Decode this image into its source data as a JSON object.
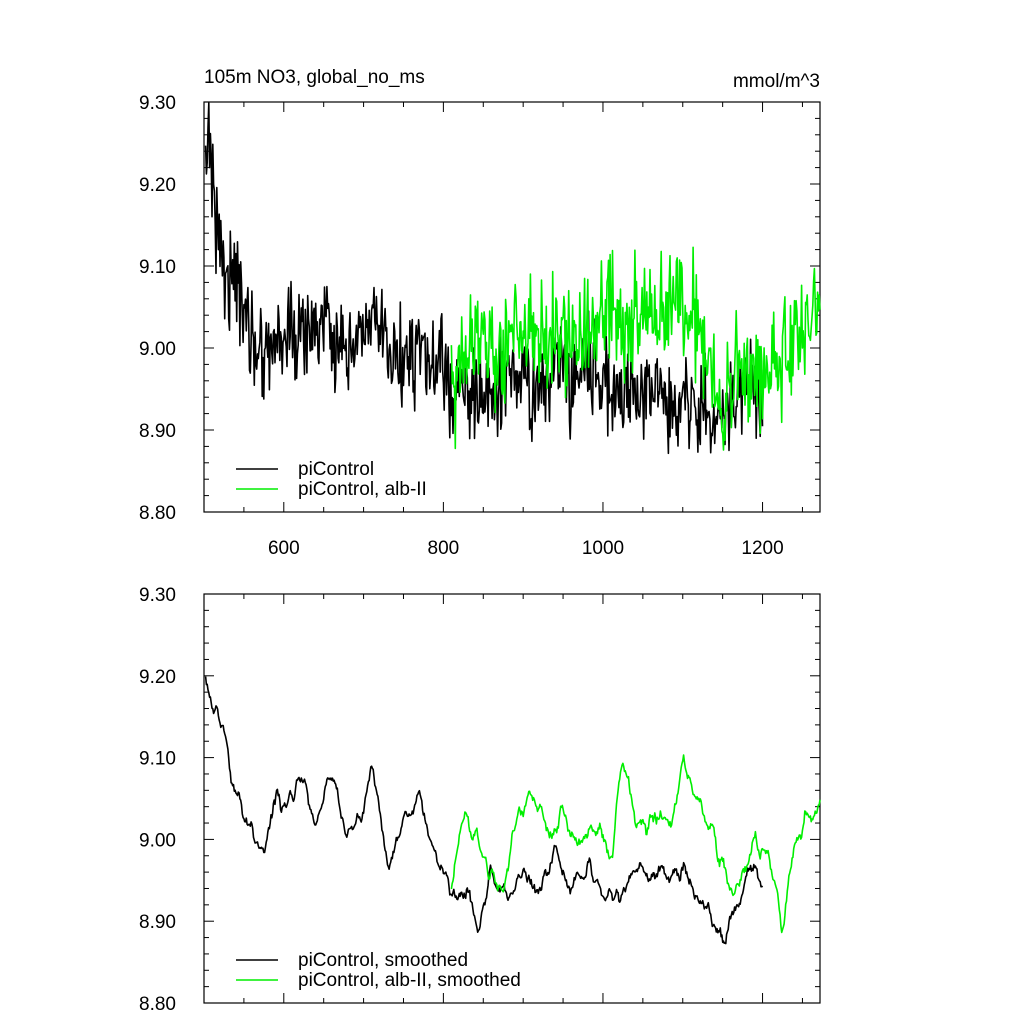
{
  "figure": {
    "title_left": "105m NO3, global_no_ms",
    "title_right": "mmol/m^3"
  },
  "chart_data": [
    {
      "type": "line",
      "panel": "top",
      "xlim": [
        500,
        1272
      ],
      "ylim": [
        8.8,
        9.3
      ],
      "x_ticks": [
        600,
        800,
        1000,
        1200
      ],
      "x_tick_labels": [
        "600",
        "800",
        "1000",
        "1200"
      ],
      "y_ticks": [
        8.8,
        8.9,
        9.0,
        9.1,
        9.2,
        9.3
      ],
      "y_tick_labels": [
        "8.80",
        "8.90",
        "9.00",
        "9.10",
        "9.20",
        "9.30"
      ],
      "legend_position": "bottom-left",
      "series": [
        {
          "name": "piControl",
          "color": "#000000",
          "x_range": [
            502,
            1200
          ],
          "noise_amp": 0.05,
          "anchors": [
            [
              502,
              9.2
            ],
            [
              506,
              9.29
            ],
            [
              512,
              9.18
            ],
            [
              525,
              9.1
            ],
            [
              545,
              9.07
            ],
            [
              560,
              9.01
            ],
            [
              580,
              9.0
            ],
            [
              600,
              9.02
            ],
            [
              620,
              9.01
            ],
            [
              640,
              9.03
            ],
            [
              660,
              9.02
            ],
            [
              680,
              8.97
            ],
            [
              700,
              9.03
            ],
            [
              720,
              9.02
            ],
            [
              740,
              8.98
            ],
            [
              760,
              9.0
            ],
            [
              780,
              8.98
            ],
            [
              800,
              8.97
            ],
            [
              820,
              8.94
            ],
            [
              840,
              8.95
            ],
            [
              860,
              8.93
            ],
            [
              880,
              8.97
            ],
            [
              900,
              8.96
            ],
            [
              920,
              8.94
            ],
            [
              940,
              8.98
            ],
            [
              960,
              8.96
            ],
            [
              980,
              8.99
            ],
            [
              1000,
              8.96
            ],
            [
              1020,
              8.94
            ],
            [
              1040,
              8.95
            ],
            [
              1060,
              8.95
            ],
            [
              1080,
              8.93
            ],
            [
              1100,
              8.95
            ],
            [
              1120,
              8.93
            ],
            [
              1140,
              8.91
            ],
            [
              1160,
              8.92
            ],
            [
              1180,
              8.96
            ],
            [
              1200,
              8.94
            ]
          ]
        },
        {
          "name": "piControl, alb-II",
          "color": "#00ee00",
          "x_range": [
            810,
            1272
          ],
          "noise_amp": 0.06,
          "anchors": [
            [
              810,
              8.95
            ],
            [
              830,
              9.0
            ],
            [
              850,
              9.02
            ],
            [
              870,
              8.98
            ],
            [
              890,
              9.03
            ],
            [
              910,
              9.04
            ],
            [
              930,
              9.01
            ],
            [
              950,
              9.02
            ],
            [
              970,
              9.0
            ],
            [
              990,
              9.03
            ],
            [
              1010,
              9.06
            ],
            [
              1030,
              9.02
            ],
            [
              1050,
              9.05
            ],
            [
              1070,
              9.04
            ],
            [
              1090,
              9.06
            ],
            [
              1110,
              9.05
            ],
            [
              1130,
              9.0
            ],
            [
              1150,
              8.92
            ],
            [
              1170,
              8.97
            ],
            [
              1190,
              8.97
            ],
            [
              1210,
              8.96
            ],
            [
              1230,
              9.0
            ],
            [
              1250,
              9.03
            ],
            [
              1272,
              9.04
            ]
          ]
        }
      ]
    },
    {
      "type": "line",
      "panel": "bottom",
      "xlim": [
        500,
        1272
      ],
      "ylim": [
        8.8,
        9.3
      ],
      "x_ticks": [
        600,
        800,
        1000,
        1200
      ],
      "y_ticks": [
        8.8,
        8.9,
        9.0,
        9.1,
        9.2,
        9.3
      ],
      "y_tick_labels": [
        "8.80",
        "8.90",
        "9.00",
        "9.10",
        "9.20",
        "9.30"
      ],
      "legend_position": "bottom-left",
      "series": [
        {
          "name": "piControl, smoothed",
          "color": "#000000",
          "x_range": [
            502,
            1200
          ],
          "noise_amp": 0.022,
          "anchors": [
            [
              502,
              9.205
            ],
            [
              510,
              9.16
            ],
            [
              525,
              9.13
            ],
            [
              540,
              9.05
            ],
            [
              560,
              9.01
            ],
            [
              575,
              8.98
            ],
            [
              590,
              9.06
            ],
            [
              600,
              9.04
            ],
            [
              620,
              9.08
            ],
            [
              640,
              9.02
            ],
            [
              660,
              9.09
            ],
            [
              680,
              9.0
            ],
            [
              700,
              9.04
            ],
            [
              710,
              9.1
            ],
            [
              730,
              8.97
            ],
            [
              750,
              9.02
            ],
            [
              770,
              9.05
            ],
            [
              790,
              8.98
            ],
            [
              810,
              8.93
            ],
            [
              830,
              8.94
            ],
            [
              845,
              8.88
            ],
            [
              860,
              8.96
            ],
            [
              880,
              8.93
            ],
            [
              900,
              8.96
            ],
            [
              920,
              8.93
            ],
            [
              940,
              8.99
            ],
            [
              960,
              8.93
            ],
            [
              980,
              8.97
            ],
            [
              1000,
              8.93
            ],
            [
              1020,
              8.93
            ],
            [
              1040,
              8.96
            ],
            [
              1060,
              8.96
            ],
            [
              1080,
              8.95
            ],
            [
              1100,
              8.96
            ],
            [
              1120,
              8.93
            ],
            [
              1140,
              8.9
            ],
            [
              1150,
              8.87
            ],
            [
              1170,
              8.92
            ],
            [
              1190,
              8.98
            ],
            [
              1200,
              8.93
            ]
          ]
        },
        {
          "name": "piControl, alb-II, smoothed",
          "color": "#00ee00",
          "x_range": [
            810,
            1272
          ],
          "noise_amp": 0.024,
          "anchors": [
            [
              810,
              8.92
            ],
            [
              825,
              9.04
            ],
            [
              845,
              8.99
            ],
            [
              860,
              8.96
            ],
            [
              875,
              8.94
            ],
            [
              890,
              9.02
            ],
            [
              910,
              9.06
            ],
            [
              930,
              9.01
            ],
            [
              950,
              9.03
            ],
            [
              970,
              8.99
            ],
            [
              990,
              9.02
            ],
            [
              1010,
              8.98
            ],
            [
              1025,
              9.1
            ],
            [
              1045,
              9.01
            ],
            [
              1065,
              9.03
            ],
            [
              1085,
              9.02
            ],
            [
              1100,
              9.1
            ],
            [
              1120,
              9.04
            ],
            [
              1140,
              9.0
            ],
            [
              1160,
              8.93
            ],
            [
              1175,
              8.96
            ],
            [
              1190,
              9.0
            ],
            [
              1210,
              8.97
            ],
            [
              1225,
              8.89
            ],
            [
              1240,
              9.0
            ],
            [
              1255,
              9.02
            ],
            [
              1272,
              9.04
            ]
          ]
        }
      ]
    }
  ]
}
